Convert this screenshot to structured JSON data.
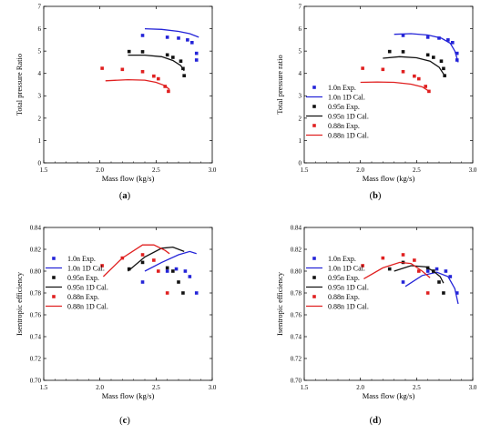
{
  "chart_data": [
    {
      "id": "a",
      "type": "scatter",
      "caption": "a",
      "xlabel": "Mass flow (kg/s)",
      "ylabel": "Total pressure Ratio",
      "xlim": [
        1.5,
        3.0
      ],
      "ylim": [
        0,
        7
      ],
      "xticks": [
        "1.5",
        "2.0",
        "2.5",
        "3.0"
      ],
      "yticks": [
        "0",
        "1",
        "2",
        "3",
        "4",
        "5",
        "6",
        "7"
      ],
      "grid": false,
      "legend": null,
      "series": [
        {
          "kind": "points",
          "color": "#2424d8",
          "x": [
            2.38,
            2.6,
            2.7,
            2.78,
            2.82,
            2.86,
            2.86
          ],
          "y": [
            5.7,
            5.62,
            5.58,
            5.5,
            5.38,
            4.9,
            4.6
          ]
        },
        {
          "kind": "line",
          "color": "#2424d8",
          "x": [
            2.4,
            2.55,
            2.7,
            2.8,
            2.88
          ],
          "y": [
            6.0,
            5.97,
            5.88,
            5.78,
            5.62
          ]
        },
        {
          "kind": "points",
          "color": "#111111",
          "x": [
            2.26,
            2.38,
            2.6,
            2.65,
            2.72,
            2.74,
            2.75
          ],
          "y": [
            4.98,
            4.97,
            4.83,
            4.72,
            4.55,
            4.22,
            3.9
          ]
        },
        {
          "kind": "line",
          "color": "#111111",
          "x": [
            2.25,
            2.4,
            2.55,
            2.65,
            2.72,
            2.75
          ],
          "y": [
            4.82,
            4.82,
            4.75,
            4.58,
            4.35,
            4.12
          ]
        },
        {
          "kind": "points",
          "color": "#e02020",
          "x": [
            2.02,
            2.2,
            2.38,
            2.48,
            2.52,
            2.58,
            2.61
          ],
          "y": [
            4.23,
            4.18,
            4.08,
            3.88,
            3.76,
            3.42,
            3.2
          ]
        },
        {
          "kind": "line",
          "color": "#e02020",
          "x": [
            2.05,
            2.25,
            2.4,
            2.5,
            2.58,
            2.62
          ],
          "y": [
            3.67,
            3.72,
            3.7,
            3.6,
            3.45,
            3.28
          ]
        }
      ]
    },
    {
      "id": "b",
      "type": "scatter",
      "caption": "b",
      "xlabel": "Mass flow (kg/s)",
      "ylabel": "Total pressure ratio",
      "xlim": [
        1.5,
        3.0
      ],
      "ylim": [
        0,
        7
      ],
      "xticks": [
        "1.5",
        "2.0",
        "2.5",
        "3.0"
      ],
      "yticks": [
        "0",
        "1",
        "2",
        "3",
        "4",
        "5",
        "6",
        "7"
      ],
      "grid": false,
      "legend": [
        {
          "label": "1.0n  Exp.",
          "marker": "square",
          "color": "#2424d8"
        },
        {
          "label": "1.0n  1D Cal.",
          "marker": "line",
          "color": "#2424d8"
        },
        {
          "label": "0.95n Exp.",
          "marker": "square",
          "color": "#111111"
        },
        {
          "label": "0.95n 1D Cal.",
          "marker": "line",
          "color": "#111111"
        },
        {
          "label": "0.88n Exp.",
          "marker": "square",
          "color": "#e02020"
        },
        {
          "label": "0.88n 1D Cal.",
          "marker": "line",
          "color": "#e02020"
        }
      ],
      "series": [
        {
          "kind": "points",
          "color": "#2424d8",
          "x": [
            2.38,
            2.6,
            2.7,
            2.78,
            2.82,
            2.86,
            2.86
          ],
          "y": [
            5.7,
            5.62,
            5.58,
            5.5,
            5.38,
            4.9,
            4.6
          ]
        },
        {
          "kind": "line",
          "color": "#2424d8",
          "x": [
            2.3,
            2.45,
            2.6,
            2.72,
            2.8,
            2.84,
            2.87
          ],
          "y": [
            5.75,
            5.78,
            5.72,
            5.58,
            5.35,
            5.0,
            4.5
          ]
        },
        {
          "kind": "points",
          "color": "#111111",
          "x": [
            2.26,
            2.38,
            2.6,
            2.65,
            2.72,
            2.74,
            2.75
          ],
          "y": [
            4.98,
            4.97,
            4.83,
            4.72,
            4.55,
            4.22,
            3.9
          ]
        },
        {
          "kind": "line",
          "color": "#111111",
          "x": [
            2.2,
            2.35,
            2.5,
            2.62,
            2.7,
            2.75
          ],
          "y": [
            4.68,
            4.75,
            4.7,
            4.55,
            4.28,
            3.9
          ]
        },
        {
          "kind": "points",
          "color": "#e02020",
          "x": [
            2.02,
            2.2,
            2.38,
            2.48,
            2.52,
            2.58,
            2.61
          ],
          "y": [
            4.23,
            4.18,
            4.08,
            3.88,
            3.76,
            3.42,
            3.2
          ]
        },
        {
          "kind": "line",
          "color": "#e02020",
          "x": [
            2.0,
            2.15,
            2.3,
            2.45,
            2.55,
            2.62
          ],
          "y": [
            3.6,
            3.62,
            3.6,
            3.52,
            3.4,
            3.18
          ]
        }
      ]
    },
    {
      "id": "c",
      "type": "scatter",
      "caption": "c",
      "xlabel": "Mass flow (kg/s)",
      "ylabel": "Isentropic efficiency",
      "xlim": [
        1.5,
        3.0
      ],
      "ylim": [
        0.7,
        0.84
      ],
      "xticks": [
        "1.5",
        "2.0",
        "2.5",
        "3.0"
      ],
      "yticks": [
        "0.70",
        "0.72",
        "0.74",
        "0.76",
        "0.78",
        "0.80",
        "0.82",
        "0.84"
      ],
      "grid": false,
      "legend": [
        {
          "label": "1.0n  Exp.",
          "marker": "square",
          "color": "#2424d8"
        },
        {
          "label": "1.0n  1D Cal.",
          "marker": "line",
          "color": "#2424d8"
        },
        {
          "label": "0.95n Exp.",
          "marker": "square",
          "color": "#111111"
        },
        {
          "label": "0.95n 1D Cal.",
          "marker": "line",
          "color": "#111111"
        },
        {
          "label": "0.88n Exp.",
          "marker": "square",
          "color": "#e02020"
        },
        {
          "label": "0.88n 1D Cal.",
          "marker": "line",
          "color": "#e02020"
        }
      ],
      "series": [
        {
          "kind": "points",
          "color": "#2424d8",
          "x": [
            2.38,
            2.6,
            2.68,
            2.76,
            2.8,
            2.86
          ],
          "y": [
            0.79,
            0.8,
            0.802,
            0.8,
            0.795,
            0.78
          ]
        },
        {
          "kind": "line",
          "color": "#2424d8",
          "x": [
            2.4,
            2.55,
            2.7,
            2.8,
            2.86
          ],
          "y": [
            0.8,
            0.808,
            0.815,
            0.818,
            0.816
          ]
        },
        {
          "kind": "points",
          "color": "#111111",
          "x": [
            2.26,
            2.38,
            2.6,
            2.65,
            2.7,
            2.74
          ],
          "y": [
            0.802,
            0.808,
            0.803,
            0.8,
            0.79,
            0.78
          ]
        },
        {
          "kind": "line",
          "color": "#111111",
          "x": [
            2.25,
            2.4,
            2.55,
            2.65,
            2.75
          ],
          "y": [
            0.8,
            0.813,
            0.821,
            0.822,
            0.818
          ]
        },
        {
          "kind": "points",
          "color": "#e02020",
          "x": [
            2.02,
            2.2,
            2.38,
            2.48,
            2.52,
            2.6
          ],
          "y": [
            0.805,
            0.812,
            0.815,
            0.81,
            0.8,
            0.78
          ]
        },
        {
          "kind": "line",
          "color": "#e02020",
          "x": [
            2.03,
            2.2,
            2.38,
            2.48,
            2.58,
            2.62
          ],
          "y": [
            0.795,
            0.812,
            0.824,
            0.824,
            0.819,
            0.816
          ]
        }
      ]
    },
    {
      "id": "d",
      "type": "scatter",
      "caption": "d",
      "xlabel": "Mass flow (kg/s)",
      "ylabel": "Isentropic efficiency",
      "xlim": [
        1.5,
        3.0
      ],
      "ylim": [
        0.7,
        0.84
      ],
      "xticks": [
        "1.5",
        "2.0",
        "2.5",
        "3.0"
      ],
      "yticks": [
        "0.70",
        "0.72",
        "0.74",
        "0.76",
        "0.78",
        "0.80",
        "0.82",
        "0.84"
      ],
      "grid": false,
      "legend": [
        {
          "label": "1.0n  Exp.",
          "marker": "square",
          "color": "#2424d8"
        },
        {
          "label": "1.0n  1D Cal.",
          "marker": "line",
          "color": "#2424d8"
        },
        {
          "label": "0.95n Exp.",
          "marker": "square",
          "color": "#111111"
        },
        {
          "label": "0.95n 1D Cal.",
          "marker": "line",
          "color": "#111111"
        },
        {
          "label": "0.88n Exp.",
          "marker": "square",
          "color": "#e02020"
        },
        {
          "label": "0.88n 1D Cal.",
          "marker": "line",
          "color": "#e02020"
        }
      ],
      "series": [
        {
          "kind": "points",
          "color": "#2424d8",
          "x": [
            2.38,
            2.6,
            2.68,
            2.76,
            2.8,
            2.86
          ],
          "y": [
            0.79,
            0.8,
            0.802,
            0.8,
            0.795,
            0.78
          ]
        },
        {
          "kind": "line",
          "color": "#2424d8",
          "x": [
            2.4,
            2.55,
            2.68,
            2.78,
            2.84,
            2.87
          ],
          "y": [
            0.786,
            0.796,
            0.799,
            0.795,
            0.784,
            0.77
          ]
        },
        {
          "kind": "points",
          "color": "#111111",
          "x": [
            2.26,
            2.38,
            2.6,
            2.65,
            2.7,
            2.74
          ],
          "y": [
            0.802,
            0.808,
            0.803,
            0.8,
            0.79,
            0.78
          ]
        },
        {
          "kind": "line",
          "color": "#111111",
          "x": [
            2.3,
            2.45,
            2.58,
            2.65,
            2.71,
            2.74
          ],
          "y": [
            0.8,
            0.805,
            0.804,
            0.8,
            0.795,
            0.789
          ]
        },
        {
          "kind": "points",
          "color": "#e02020",
          "x": [
            2.02,
            2.2,
            2.38,
            2.48,
            2.52,
            2.6
          ],
          "y": [
            0.805,
            0.812,
            0.815,
            0.81,
            0.8,
            0.78
          ]
        },
        {
          "kind": "line",
          "color": "#e02020",
          "x": [
            2.03,
            2.2,
            2.35,
            2.45,
            2.55,
            2.62
          ],
          "y": [
            0.793,
            0.803,
            0.808,
            0.807,
            0.8,
            0.794
          ]
        }
      ]
    }
  ]
}
